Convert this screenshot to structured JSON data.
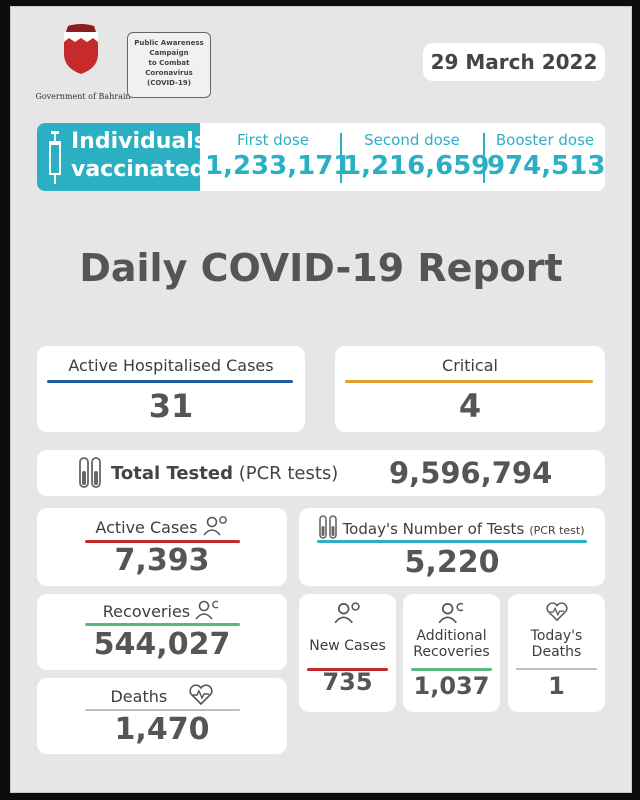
{
  "header": {
    "government": "Government of Bahrain",
    "campaign": [
      "Public Awareness",
      "Campaign",
      "to Combat",
      "Coronavirus",
      "(COVID-19)"
    ],
    "date": "29 March 2022"
  },
  "vaccination": {
    "title_line1": "Individuals",
    "title_line2": "vaccinated",
    "first_label": "First dose",
    "first_value": "1,233,171",
    "second_label": "Second dose",
    "second_value": "1,216,659",
    "booster_label": "Booster dose",
    "booster_value": "974,513"
  },
  "title": "Daily COVID-19 Report",
  "hospitalised": {
    "label": "Active Hospitalised Cases",
    "value": "31"
  },
  "critical": {
    "label": "Critical",
    "value": "4"
  },
  "total_tested": {
    "label": "Total Tested",
    "suffix": "(PCR tests)",
    "value": "9,596,794"
  },
  "active_cases": {
    "label": "Active Cases",
    "value": "7,393"
  },
  "tests_today": {
    "label": "Today's Number of Tests",
    "suffix": "(PCR test)",
    "value": "5,220"
  },
  "recoveries": {
    "label": "Recoveries",
    "value": "544,027"
  },
  "deaths": {
    "label": "Deaths",
    "value": "1,470"
  },
  "new_cases": {
    "label": "New Cases",
    "value": "735"
  },
  "additional_recoveries": {
    "label_line1": "Additional",
    "label_line2": "Recoveries",
    "value": "1,037"
  },
  "todays_deaths": {
    "label_line1": "Today's",
    "label_line2": "Deaths",
    "value": "1"
  },
  "colors": {
    "teal": "#2bb0c3",
    "blue": "#1f5fa0",
    "orange": "#e0a02a",
    "red": "#c62a2a",
    "green": "#5cb87a"
  },
  "icons": [
    "bahrain-emblem-icon",
    "syringe-icon",
    "test-tubes-icon",
    "people-icon",
    "heartbeat-icon"
  ]
}
